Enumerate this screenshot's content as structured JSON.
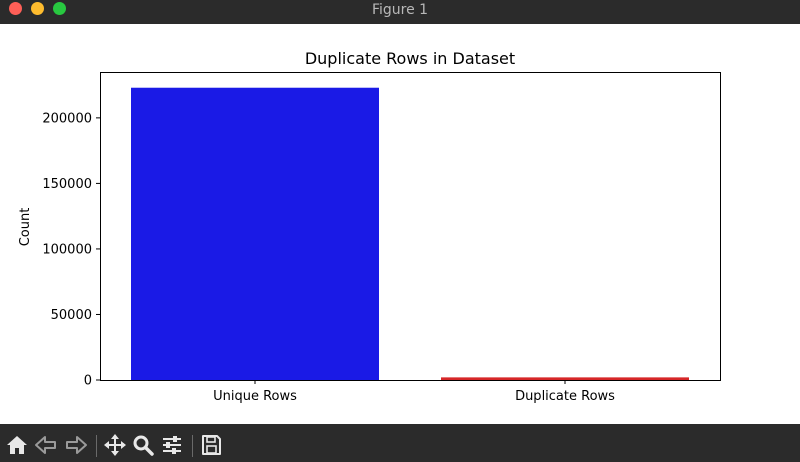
{
  "window": {
    "title": "Figure 1"
  },
  "toolbar": {
    "buttons": [
      {
        "name": "home-button",
        "icon": "home-icon"
      },
      {
        "name": "back-button",
        "icon": "arrow-left-icon"
      },
      {
        "name": "forward-button",
        "icon": "arrow-right-icon"
      },
      {
        "name": "pan-button",
        "icon": "move-icon"
      },
      {
        "name": "zoom-button",
        "icon": "magnifier-icon"
      },
      {
        "name": "configure-subplots-button",
        "icon": "sliders-icon"
      },
      {
        "name": "save-button",
        "icon": "floppy-disk-icon"
      }
    ]
  },
  "chart_data": {
    "type": "bar",
    "title": "Duplicate Rows in Dataset",
    "xlabel": "",
    "ylabel": "Count",
    "categories": [
      "Unique Rows",
      "Duplicate Rows"
    ],
    "values": [
      223000,
      2000
    ],
    "colors": [
      "#1a1ae6",
      "#d62728"
    ],
    "ylim": [
      0,
      235000
    ],
    "yticks": [
      0,
      50000,
      100000,
      150000,
      200000
    ],
    "ytick_labels": [
      "0",
      "50000",
      "100000",
      "150000",
      "200000"
    ],
    "grid": false,
    "legend": "none"
  }
}
